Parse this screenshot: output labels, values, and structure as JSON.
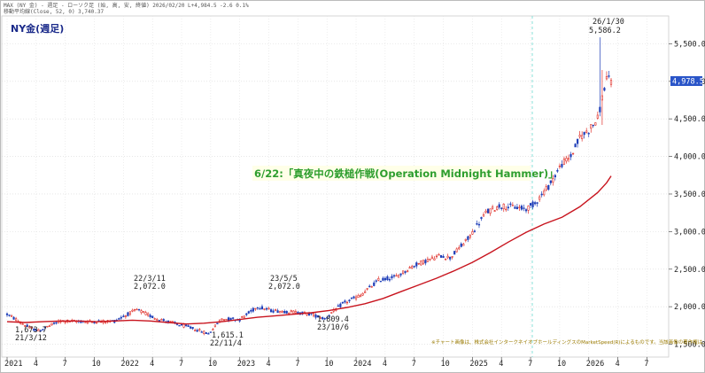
{
  "header": {
    "line1": "MAX (NY 金) - 週足 - ローソク足  (始, 高, 安, 終値)    2026/02/20  L+4,984.5  -2.6  0.1%",
    "line2": "移動平均線(Close, 52, 0) 3,740.37"
  },
  "price_badge": "4,978.5",
  "chart_data": {
    "type": "candlestick",
    "title": "NY金(週足)",
    "y_ticks": [
      1500,
      2000,
      2500,
      3000,
      3500,
      4000,
      4500,
      5000,
      5500
    ],
    "y_tick_labels": [
      "1,500.0",
      "2,000.0",
      "2,500.0",
      "3,000.0",
      "3,500.0",
      "4,000.0",
      "4,500.0",
      "5,000.0",
      "5,500.0"
    ],
    "ylim": [
      1330,
      5870
    ],
    "x_labels": [
      "2021",
      "4",
      "7",
      "10",
      "2022",
      "4",
      "7",
      "10",
      "2023",
      "4",
      "7",
      "10",
      "2024",
      "4",
      "7",
      "10",
      "2025",
      "4",
      "7",
      "10",
      "2026",
      "4",
      "7"
    ],
    "moving_average": {
      "name": "移動平均線(Close, 52, 0)",
      "points": [
        [
          0,
          1800
        ],
        [
          8,
          1790
        ],
        [
          16,
          1800
        ],
        [
          24,
          1810
        ],
        [
          32,
          1810
        ],
        [
          40,
          1800
        ],
        [
          48,
          1810
        ],
        [
          56,
          1820
        ],
        [
          64,
          1810
        ],
        [
          72,
          1790
        ],
        [
          80,
          1770
        ],
        [
          88,
          1780
        ],
        [
          96,
          1800
        ],
        [
          104,
          1830
        ],
        [
          112,
          1860
        ],
        [
          120,
          1880
        ],
        [
          128,
          1900
        ],
        [
          136,
          1920
        ],
        [
          144,
          1950
        ],
        [
          152,
          1990
        ],
        [
          160,
          2040
        ],
        [
          168,
          2110
        ],
        [
          176,
          2200
        ],
        [
          184,
          2290
        ],
        [
          192,
          2380
        ],
        [
          200,
          2480
        ],
        [
          208,
          2590
        ],
        [
          216,
          2720
        ],
        [
          224,
          2860
        ],
        [
          232,
          2990
        ],
        [
          240,
          3100
        ],
        [
          248,
          3190
        ],
        [
          256,
          3330
        ],
        [
          264,
          3520
        ],
        [
          268,
          3650
        ],
        [
          270,
          3740
        ]
      ]
    },
    "key_points": [
      [
        0,
        1900
      ],
      [
        10,
        1720
      ],
      [
        14,
        1680
      ],
      [
        24,
        1810
      ],
      [
        36,
        1800
      ],
      [
        48,
        1810
      ],
      [
        58,
        1960
      ],
      [
        66,
        1850
      ],
      [
        82,
        1720
      ],
      [
        90,
        1640
      ],
      [
        96,
        1840
      ],
      [
        104,
        1830
      ],
      [
        112,
        2000
      ],
      [
        118,
        1950
      ],
      [
        128,
        1930
      ],
      [
        136,
        1900
      ],
      [
        142,
        1840
      ],
      [
        150,
        2040
      ],
      [
        158,
        2150
      ],
      [
        166,
        2350
      ],
      [
        174,
        2400
      ],
      [
        182,
        2550
      ],
      [
        188,
        2620
      ],
      [
        194,
        2680
      ],
      [
        198,
        2650
      ],
      [
        206,
        2900
      ],
      [
        214,
        3250
      ],
      [
        220,
        3340
      ],
      [
        226,
        3330
      ],
      [
        232,
        3300
      ],
      [
        236,
        3380
      ],
      [
        242,
        3600
      ],
      [
        248,
        3900
      ],
      [
        252,
        4000
      ],
      [
        256,
        4250
      ],
      [
        260,
        4350
      ],
      [
        264,
        4500
      ],
      [
        268,
        5050
      ],
      [
        270,
        4984
      ]
    ],
    "annotations": [
      {
        "date": "21/3/12",
        "value": "1,673.7"
      },
      {
        "date": "22/3/11",
        "value": "2,072.0"
      },
      {
        "date": "22/11/4",
        "value": "1,615.1"
      },
      {
        "date": "23/5/5",
        "value": "2,072.0"
      },
      {
        "date": "23/10/6",
        "value": "1,809.4"
      },
      {
        "date": "26/1/30",
        "value": "5,586.2"
      }
    ],
    "event": "6/22:「真夜中の鉄槌作戦(Operation Midnight Hammer)」",
    "source_note": "※チャート画像は、株式会社インタークネイオブホールディングスのMarketSpeed(R)によるものです。当該画像の著作権は、同社に"
  }
}
